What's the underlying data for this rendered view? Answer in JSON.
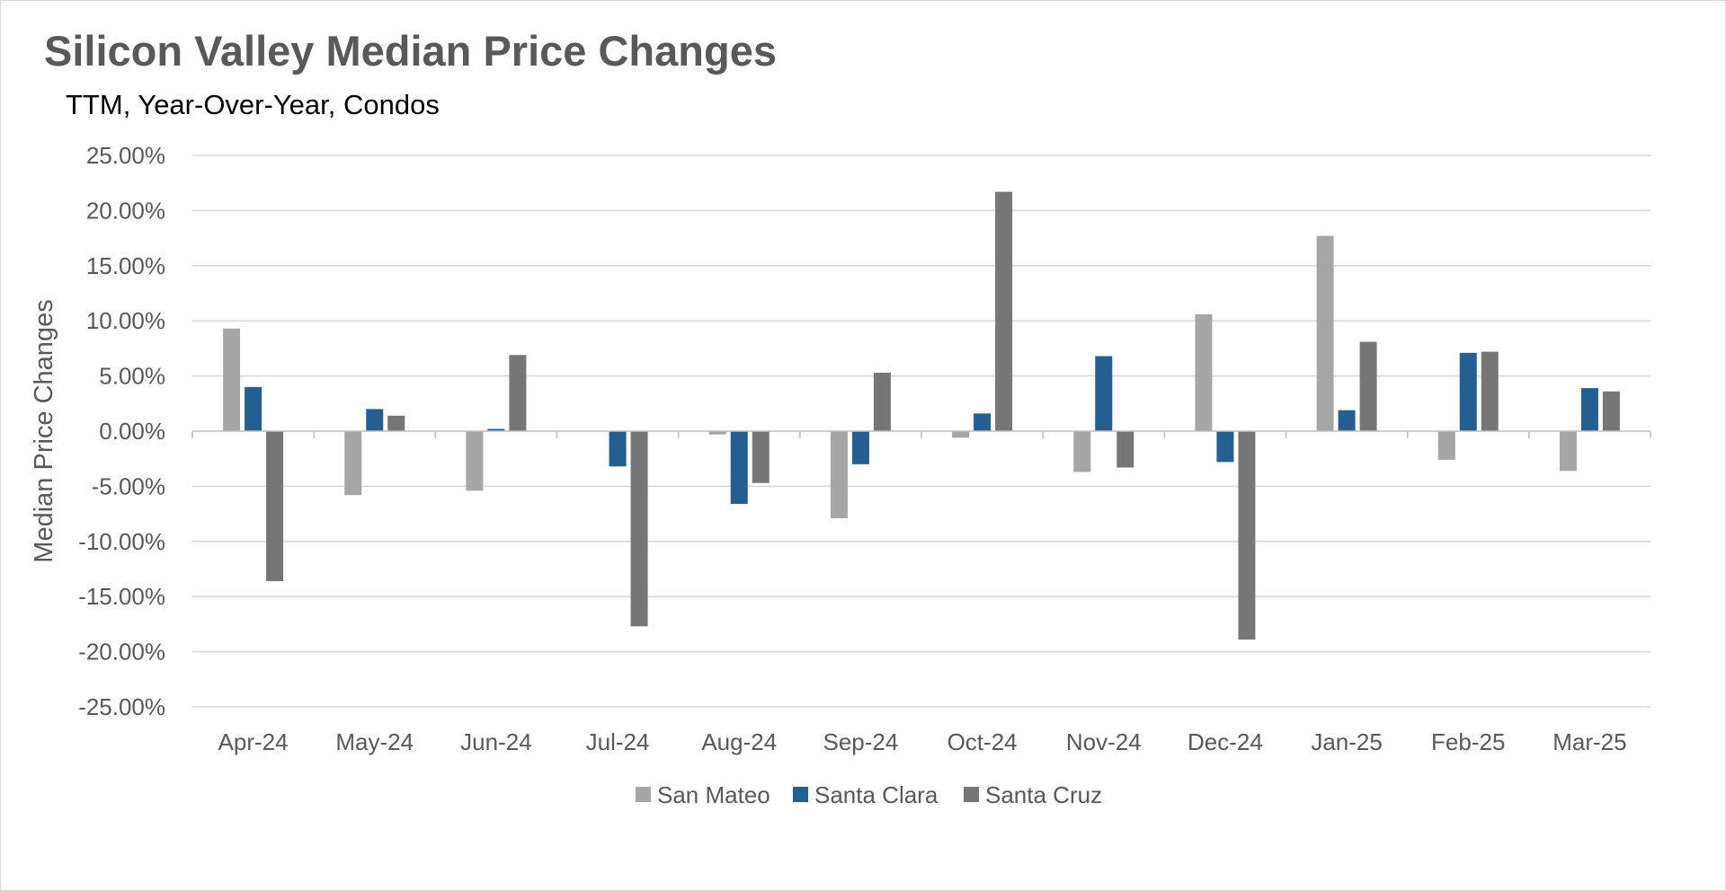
{
  "chart_data": {
    "type": "bar",
    "title": "Silicon Valley Median Price Changes",
    "subtitle": "TTM, Year-Over-Year, Condos",
    "xlabel": "",
    "ylabel": "Median Price Changes",
    "ylim": [
      -25,
      25
    ],
    "ytick_step": 5,
    "ytick_labels": [
      "-25.00%",
      "-20.00%",
      "-15.00%",
      "-10.00%",
      "-5.00%",
      "0.00%",
      "5.00%",
      "10.00%",
      "15.00%",
      "20.00%",
      "25.00%"
    ],
    "categories": [
      "Apr-24",
      "May-24",
      "Jun-24",
      "Jul-24",
      "Aug-24",
      "Sep-24",
      "Oct-24",
      "Nov-24",
      "Dec-24",
      "Jan-25",
      "Feb-25",
      "Mar-25"
    ],
    "series": [
      {
        "name": "San Mateo",
        "color": "#a6a6a6",
        "values": [
          9.3,
          -5.8,
          -5.4,
          0.0,
          -0.3,
          -7.9,
          -0.6,
          -3.7,
          10.6,
          17.7,
          -2.6,
          -3.6
        ]
      },
      {
        "name": "Santa Clara",
        "color": "#255e91",
        "values": [
          4.0,
          2.0,
          0.2,
          -3.2,
          -6.6,
          -3.0,
          1.6,
          6.8,
          -2.8,
          1.9,
          7.1,
          3.9
        ]
      },
      {
        "name": "Santa Cruz",
        "color": "#767676",
        "values": [
          -13.6,
          1.4,
          6.9,
          -17.7,
          -4.7,
          5.3,
          21.7,
          -3.3,
          -18.9,
          8.1,
          7.2,
          3.6
        ]
      }
    ],
    "grid": true,
    "legend_position": "bottom-center"
  },
  "colors": {
    "gridline": "#d9d9d9",
    "axis_line": "#bfbfbf",
    "title": "#595959"
  }
}
